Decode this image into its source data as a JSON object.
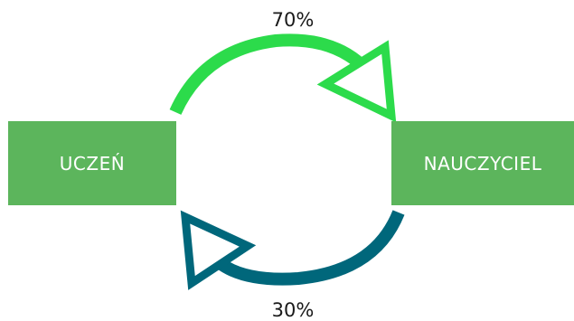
{
  "left_box": {
    "label": "UCZEŃ"
  },
  "right_box": {
    "label": "NAUCZYCIEL"
  },
  "top_flow": {
    "label": "70%"
  },
  "bottom_flow": {
    "label": "30%"
  },
  "colors": {
    "box_fill": "#5cb55c",
    "top_arrow": "#2cdb4b",
    "bottom_arrow": "#00677b",
    "text_on_box": "#ffffff",
    "text": "#1a1a1a"
  }
}
